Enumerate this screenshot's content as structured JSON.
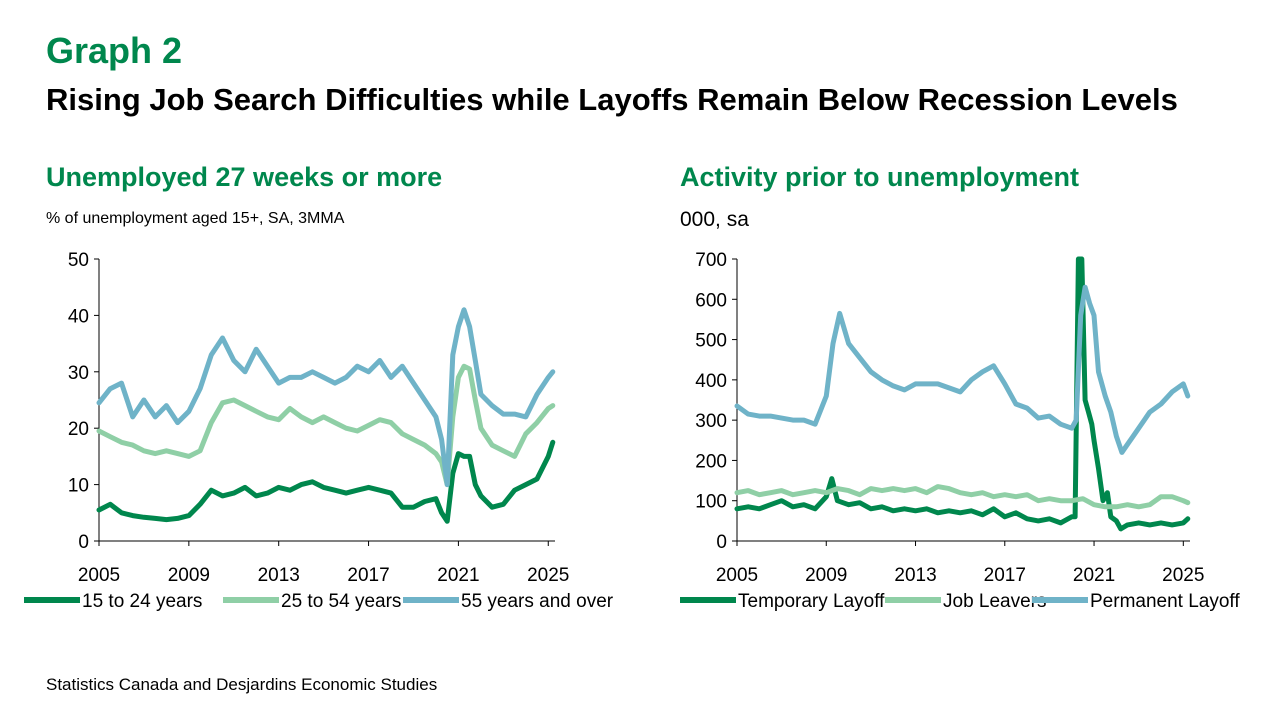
{
  "header": {
    "graph_label": "Graph 2",
    "title": "Rising Job Search Difficulties while Layoffs Remain Below Recession Levels"
  },
  "footer": {
    "source": "Statistics Canada and Desjardins Economic Studies"
  },
  "colors": {
    "dark_green": "#00874d",
    "light_green": "#8fcfa6",
    "blue": "#6fb3c8",
    "axis": "#000000"
  },
  "chart_data": [
    {
      "type": "line",
      "title": "Unemployed 27 weeks or more",
      "units": "%  of unemployment aged 15+, SA, 3MMA",
      "xlim": [
        2005,
        2025.3
      ],
      "ylim": [
        0,
        50
      ],
      "yticks": [
        0,
        10,
        20,
        30,
        40,
        50
      ],
      "xticks": [
        2005,
        2009,
        2013,
        2017,
        2021,
        2025
      ],
      "legend": "bottom",
      "series": [
        {
          "name": "15 to 24 years",
          "color": "dark_green",
          "x": [
            2005,
            2005.5,
            2006,
            2006.5,
            2007,
            2007.5,
            2008,
            2008.5,
            2009,
            2009.5,
            2010,
            2010.5,
            2011,
            2011.5,
            2012,
            2012.5,
            2013,
            2013.5,
            2014,
            2014.5,
            2015,
            2015.5,
            2016,
            2016.5,
            2017,
            2017.5,
            2018,
            2018.5,
            2019,
            2019.5,
            2020,
            2020.25,
            2020.5,
            2020.75,
            2021,
            2021.25,
            2021.5,
            2021.75,
            2022,
            2022.5,
            2023,
            2023.5,
            2024,
            2024.5,
            2025,
            2025.2
          ],
          "values": [
            5.5,
            6.5,
            5,
            4.5,
            4.2,
            4,
            3.8,
            4,
            4.5,
            6.5,
            9,
            8,
            8.5,
            9.5,
            8,
            8.5,
            9.5,
            9,
            10,
            10.5,
            9.5,
            9,
            8.5,
            9,
            9.5,
            9,
            8.5,
            6,
            6,
            7,
            7.5,
            5,
            3.5,
            12,
            15.5,
            15,
            15,
            10,
            8,
            6,
            6.5,
            9,
            10,
            11,
            15,
            17.5
          ]
        },
        {
          "name": "25 to 54 years",
          "color": "light_green",
          "x": [
            2005,
            2005.5,
            2006,
            2006.5,
            2007,
            2007.5,
            2008,
            2008.5,
            2009,
            2009.5,
            2010,
            2010.5,
            2011,
            2011.5,
            2012,
            2012.5,
            2013,
            2013.5,
            2014,
            2014.5,
            2015,
            2015.5,
            2016,
            2016.5,
            2017,
            2017.5,
            2018,
            2018.5,
            2019,
            2019.5,
            2020,
            2020.25,
            2020.5,
            2020.75,
            2021,
            2021.25,
            2021.5,
            2021.75,
            2022,
            2022.5,
            2023,
            2023.5,
            2024,
            2024.5,
            2025,
            2025.2
          ],
          "values": [
            19.5,
            18.5,
            17.5,
            17,
            16,
            15.5,
            16,
            15.5,
            15,
            16,
            21,
            24.5,
            25,
            24,
            23,
            22,
            21.5,
            23.5,
            22,
            21,
            22,
            21,
            20,
            19.5,
            20.5,
            21.5,
            21,
            19,
            18,
            17,
            15.5,
            14,
            10,
            22,
            29,
            31,
            30.5,
            25,
            20,
            17,
            16,
            15,
            19,
            21,
            23.5,
            24
          ]
        },
        {
          "name": "55 years and over",
          "color": "blue",
          "x": [
            2005,
            2005.5,
            2006,
            2006.5,
            2007,
            2007.5,
            2008,
            2008.5,
            2009,
            2009.5,
            2010,
            2010.5,
            2011,
            2011.5,
            2012,
            2012.5,
            2013,
            2013.5,
            2014,
            2014.5,
            2015,
            2015.5,
            2016,
            2016.5,
            2017,
            2017.5,
            2018,
            2018.5,
            2019,
            2019.5,
            2020,
            2020.25,
            2020.5,
            2020.75,
            2021,
            2021.25,
            2021.5,
            2021.75,
            2022,
            2022.5,
            2023,
            2023.5,
            2024,
            2024.5,
            2025,
            2025.2
          ],
          "values": [
            24.5,
            27,
            28,
            22,
            25,
            22,
            24,
            21,
            23,
            27,
            33,
            36,
            32,
            30,
            34,
            31,
            28,
            29,
            29,
            30,
            29,
            28,
            29,
            31,
            30,
            32,
            29,
            31,
            28,
            25,
            22,
            18,
            10,
            33,
            38,
            41,
            38,
            32,
            26,
            24,
            22.5,
            22.5,
            22,
            26,
            29,
            30
          ]
        }
      ]
    },
    {
      "type": "line",
      "title": "Activity prior to unemployment",
      "units": "000, sa",
      "xlim": [
        2005,
        2025.3
      ],
      "ylim": [
        0,
        700
      ],
      "yticks": [
        0,
        100,
        200,
        300,
        400,
        500,
        600,
        700
      ],
      "xticks": [
        2005,
        2009,
        2013,
        2017,
        2021,
        2025
      ],
      "legend": "bottom",
      "series": [
        {
          "name": "Temporary Layoff",
          "color": "dark_green",
          "x": [
            2005,
            2005.5,
            2006,
            2006.5,
            2007,
            2007.5,
            2008,
            2008.5,
            2009,
            2009.25,
            2009.5,
            2010,
            2010.5,
            2011,
            2011.5,
            2012,
            2012.5,
            2013,
            2013.5,
            2014,
            2014.5,
            2015,
            2015.5,
            2016,
            2016.5,
            2017,
            2017.5,
            2018,
            2018.5,
            2019,
            2019.5,
            2020,
            2020.15,
            2020.3,
            2020.45,
            2020.6,
            2020.75,
            2020.9,
            2021,
            2021.2,
            2021.4,
            2021.6,
            2021.75,
            2022,
            2022.2,
            2022.5,
            2023,
            2023.5,
            2024,
            2024.5,
            2025,
            2025.2
          ],
          "values": [
            80,
            85,
            80,
            90,
            100,
            85,
            90,
            80,
            110,
            155,
            100,
            90,
            95,
            80,
            85,
            75,
            80,
            75,
            80,
            70,
            75,
            70,
            75,
            65,
            80,
            60,
            70,
            55,
            50,
            55,
            45,
            60,
            60,
            700,
            700,
            350,
            320,
            290,
            250,
            180,
            100,
            120,
            60,
            50,
            30,
            40,
            45,
            40,
            45,
            40,
            45,
            55
          ]
        },
        {
          "name": "Job Leavers",
          "color": "light_green",
          "x": [
            2005,
            2005.5,
            2006,
            2006.5,
            2007,
            2007.5,
            2008,
            2008.5,
            2009,
            2009.5,
            2010,
            2010.5,
            2011,
            2011.5,
            2012,
            2012.5,
            2013,
            2013.5,
            2014,
            2014.5,
            2015,
            2015.5,
            2016,
            2016.5,
            2017,
            2017.5,
            2018,
            2018.5,
            2019,
            2019.5,
            2020,
            2020.5,
            2021,
            2021.5,
            2022,
            2022.5,
            2023,
            2023.5,
            2024,
            2024.5,
            2025,
            2025.2
          ],
          "values": [
            120,
            125,
            115,
            120,
            125,
            115,
            120,
            125,
            120,
            130,
            125,
            115,
            130,
            125,
            130,
            125,
            130,
            120,
            135,
            130,
            120,
            115,
            120,
            110,
            115,
            110,
            115,
            100,
            105,
            100,
            100,
            105,
            90,
            85,
            85,
            90,
            85,
            90,
            110,
            110,
            100,
            95
          ]
        },
        {
          "name": "Permanent Layoff",
          "color": "blue",
          "x": [
            2005,
            2005.5,
            2006,
            2006.5,
            2007,
            2007.5,
            2008,
            2008.5,
            2009,
            2009.3,
            2009.6,
            2010,
            2010.5,
            2011,
            2011.5,
            2012,
            2012.5,
            2013,
            2013.5,
            2014,
            2014.5,
            2015,
            2015.5,
            2016,
            2016.5,
            2017,
            2017.5,
            2018,
            2018.5,
            2019,
            2019.5,
            2020,
            2020.2,
            2020.4,
            2020.6,
            2020.8,
            2021,
            2021.2,
            2021.5,
            2021.75,
            2022,
            2022.25,
            2022.5,
            2022.75,
            2023,
            2023.5,
            2024,
            2024.5,
            2025,
            2025.2
          ],
          "values": [
            335,
            315,
            310,
            310,
            305,
            300,
            300,
            290,
            360,
            490,
            565,
            490,
            455,
            420,
            400,
            385,
            375,
            390,
            390,
            390,
            380,
            370,
            400,
            420,
            435,
            390,
            340,
            330,
            305,
            310,
            290,
            280,
            300,
            560,
            630,
            590,
            560,
            420,
            360,
            320,
            260,
            220,
            240,
            260,
            280,
            320,
            340,
            370,
            390,
            360
          ]
        }
      ]
    }
  ]
}
